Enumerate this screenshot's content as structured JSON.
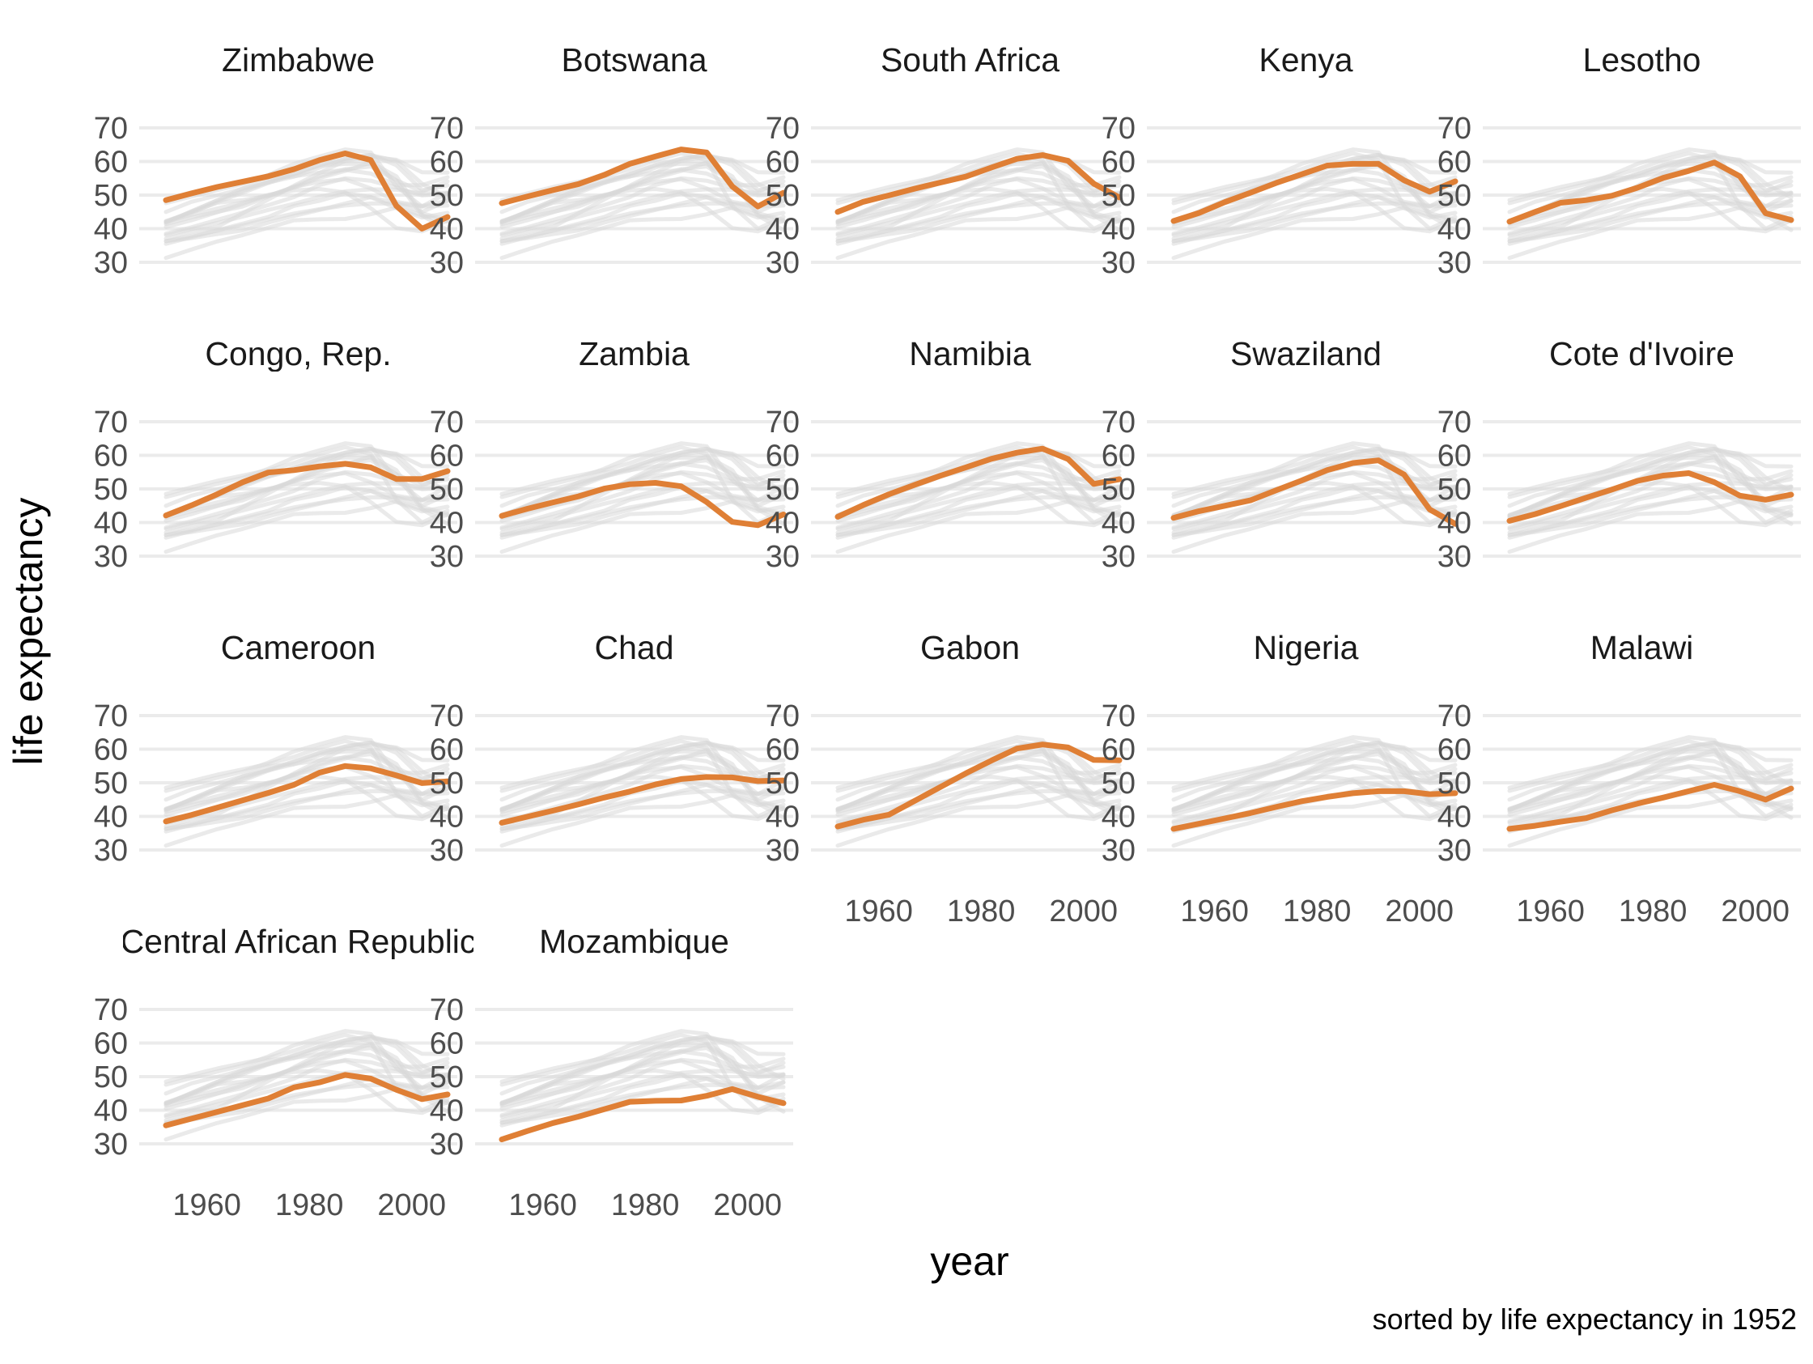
{
  "chart_data": {
    "type": "line",
    "layout": "faceted small multiples, 5 columns",
    "xlabel": "year",
    "ylabel": "life expectancy",
    "caption": "sorted by life expectancy in 1952",
    "x": [
      1952,
      1957,
      1962,
      1967,
      1972,
      1977,
      1982,
      1987,
      1992,
      1997,
      2002,
      2007
    ],
    "xlim": [
      1952,
      2007
    ],
    "ylim": [
      23,
      77
    ],
    "yticks": [
      30,
      40,
      50,
      60,
      70
    ],
    "xticks": [
      1960,
      1980,
      2000
    ],
    "ytick_labels": [
      "30",
      "40",
      "50",
      "60",
      "70"
    ],
    "xtick_labels": [
      "1960",
      "1980",
      "2000"
    ],
    "grid": "horizontal major gridlines",
    "highlight_color": "#DF7F35",
    "background_color": "#D9D9D9",
    "facets": [
      {
        "title": "Zimbabwe",
        "values": [
          48.5,
          50.5,
          52.4,
          54.0,
          55.6,
          57.7,
          60.4,
          62.4,
          60.4,
          46.8,
          40.0,
          43.5
        ]
      },
      {
        "title": "Botswana",
        "values": [
          47.6,
          49.6,
          51.5,
          53.3,
          56.0,
          59.3,
          61.5,
          63.6,
          62.7,
          52.6,
          46.6,
          50.7
        ]
      },
      {
        "title": "South Africa",
        "values": [
          45.0,
          48.0,
          49.9,
          51.9,
          53.7,
          55.5,
          58.2,
          60.8,
          61.9,
          60.2,
          53.4,
          49.3
        ]
      },
      {
        "title": "Kenya",
        "values": [
          42.3,
          44.7,
          47.9,
          50.7,
          53.6,
          56.2,
          58.8,
          59.3,
          59.3,
          54.4,
          51.0,
          54.1
        ]
      },
      {
        "title": "Lesotho",
        "values": [
          42.1,
          45.0,
          47.7,
          48.5,
          49.8,
          52.2,
          55.1,
          57.2,
          59.7,
          55.6,
          44.6,
          42.6
        ]
      },
      {
        "title": "Congo, Rep.",
        "values": [
          42.1,
          45.1,
          48.4,
          52.0,
          54.9,
          55.6,
          56.7,
          57.5,
          56.4,
          52.96,
          52.97,
          55.3
        ]
      },
      {
        "title": "Zambia",
        "values": [
          42.0,
          44.1,
          46.0,
          47.8,
          50.1,
          51.4,
          51.8,
          50.8,
          46.1,
          40.2,
          39.2,
          42.4
        ]
      },
      {
        "title": "Namibia",
        "values": [
          41.7,
          45.2,
          48.4,
          51.2,
          53.9,
          56.4,
          58.97,
          60.8,
          62.0,
          58.9,
          51.5,
          52.9
        ]
      },
      {
        "title": "Swaziland",
        "values": [
          41.4,
          43.4,
          44.99,
          46.6,
          49.6,
          52.5,
          55.6,
          57.7,
          58.5,
          54.3,
          43.9,
          39.6
        ]
      },
      {
        "title": "Cote d'Ivoire",
        "values": [
          40.5,
          42.5,
          44.9,
          47.4,
          49.8,
          52.4,
          53.98,
          54.7,
          52.0,
          47.99,
          46.8,
          48.3
        ]
      },
      {
        "title": "Cameroon",
        "values": [
          38.5,
          40.4,
          42.6,
          44.8,
          47.0,
          49.4,
          53.0,
          54.99,
          54.3,
          52.2,
          49.9,
          50.4
        ]
      },
      {
        "title": "Chad",
        "values": [
          38.1,
          39.9,
          41.7,
          43.6,
          45.6,
          47.4,
          49.5,
          51.1,
          51.7,
          51.6,
          50.5,
          50.7
        ]
      },
      {
        "title": "Gabon",
        "values": [
          37.0,
          38.99,
          40.5,
          44.6,
          48.7,
          52.8,
          56.6,
          60.2,
          61.4,
          60.5,
          56.8,
          56.7
        ]
      },
      {
        "title": "Nigeria",
        "values": [
          36.3,
          37.8,
          39.4,
          41.0,
          42.8,
          44.5,
          45.8,
          46.9,
          47.5,
          47.5,
          46.6,
          46.9
        ]
      },
      {
        "title": "Malawi",
        "values": [
          36.3,
          37.2,
          38.4,
          39.5,
          41.8,
          43.8,
          45.6,
          47.5,
          49.4,
          47.5,
          45.0,
          48.3
        ]
      },
      {
        "title": "Central African Republic",
        "values": [
          35.5,
          37.5,
          39.5,
          41.5,
          43.5,
          46.8,
          48.3,
          50.5,
          49.4,
          46.1,
          43.3,
          44.7
        ]
      },
      {
        "title": "Mozambique",
        "values": [
          31.3,
          33.8,
          36.2,
          38.1,
          40.3,
          42.5,
          42.8,
          42.9,
          44.3,
          46.3,
          44.0,
          42.1
        ]
      }
    ]
  }
}
